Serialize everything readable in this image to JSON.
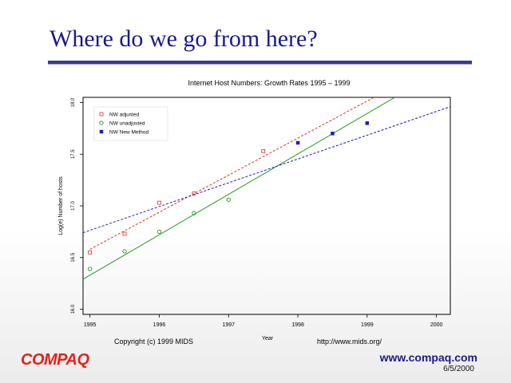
{
  "slide": {
    "title": "Where do we go from here?",
    "logo": "COMPAQ",
    "url": "www.compaq.com",
    "date": "6/5/2000"
  },
  "chart_data": {
    "type": "scatter",
    "title": "Internet Host Numbers: Growth Rates 1995 – 1999",
    "xlabel": "Year",
    "ylabel": "Log(e) Number of hosts",
    "xlim": [
      1994.9,
      2000.2
    ],
    "ylim": [
      15.95,
      18.05
    ],
    "x_ticks": [
      "1995",
      "1996",
      "1997",
      "1998",
      "1999",
      "2000"
    ],
    "y_ticks": [
      "16.0",
      "16.5",
      "17.0",
      "17.5",
      "18.0"
    ],
    "grid": false,
    "legend_position": "top-left",
    "copyright": "Copyright (c) 1999 MIDS",
    "source_url": "http://www.mids.org/",
    "series": [
      {
        "name": "NW adjusted",
        "marker": "open-square",
        "color": "#e03030",
        "points": [
          [
            1995.0,
            16.55
          ],
          [
            1995.5,
            16.73
          ],
          [
            1996.0,
            17.03
          ],
          [
            1996.5,
            17.12
          ],
          [
            1997.5,
            17.53
          ]
        ],
        "fit": [
          [
            1995.0,
            16.58
          ],
          [
            1999.1,
            18.05
          ]
        ]
      },
      {
        "name": "NW unadjusted",
        "marker": "open-circle",
        "color": "#1a9a1a",
        "points": [
          [
            1995.0,
            16.39
          ],
          [
            1995.5,
            16.56
          ],
          [
            1996.0,
            16.75
          ],
          [
            1996.5,
            16.93
          ],
          [
            1997.0,
            17.06
          ]
        ],
        "fit": [
          [
            1994.9,
            16.29
          ],
          [
            1999.4,
            18.05
          ]
        ]
      },
      {
        "name": "NW New Method",
        "marker": "filled-square",
        "color": "#1a1acc",
        "points": [
          [
            1998.0,
            17.61
          ],
          [
            1998.5,
            17.7
          ],
          [
            1999.0,
            17.8
          ]
        ],
        "fit": [
          [
            1994.9,
            16.74
          ],
          [
            2000.2,
            17.96
          ]
        ]
      }
    ]
  }
}
